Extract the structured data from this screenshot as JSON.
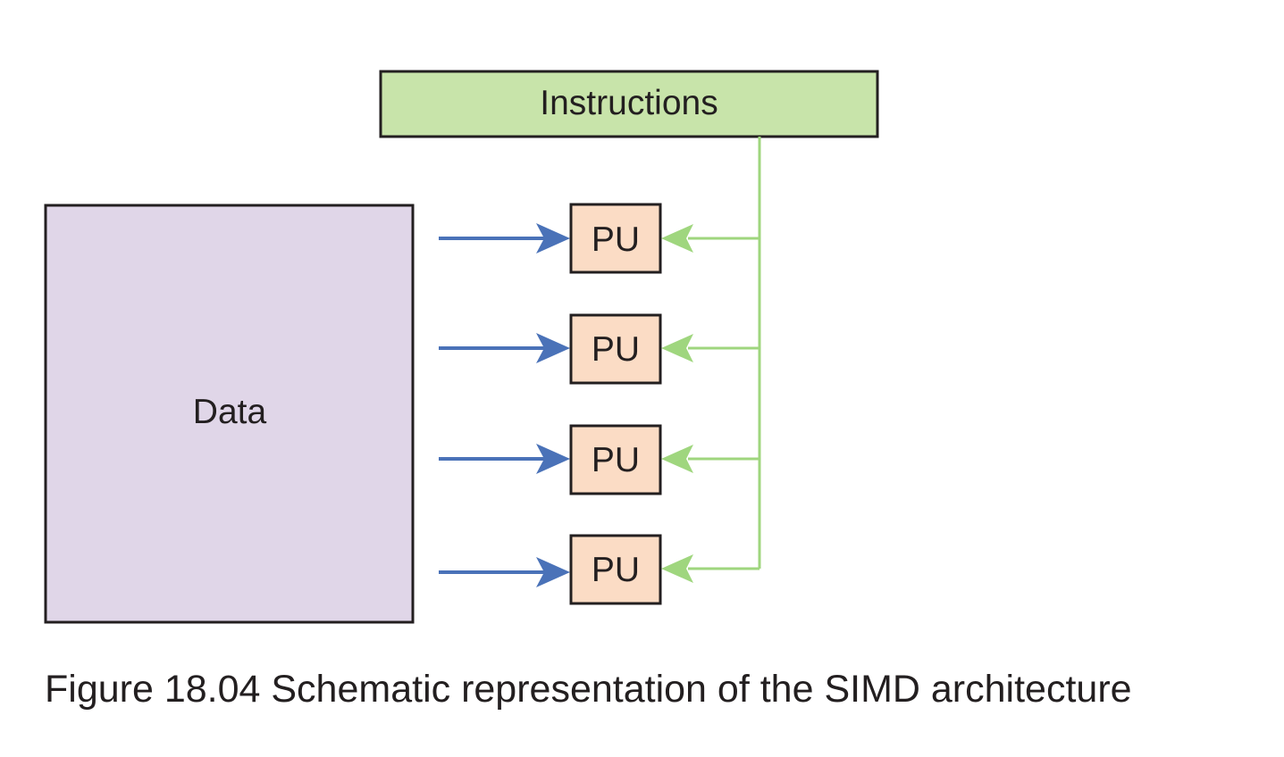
{
  "diagram": {
    "instructions_label": "Instructions",
    "data_label": "Data",
    "processing_units": [
      {
        "label": "PU"
      },
      {
        "label": "PU"
      },
      {
        "label": "PU"
      },
      {
        "label": "PU"
      }
    ]
  },
  "caption": "Figure 18.04 Schematic representation of the SIMD architecture",
  "colors": {
    "instructions_fill": "#c8e4aa",
    "data_fill": "#e0d6e8",
    "pu_fill": "#fbdcc5",
    "data_arrow": "#4a72b8",
    "instruction_arrow": "#9fd67e",
    "outline": "#231f20"
  }
}
